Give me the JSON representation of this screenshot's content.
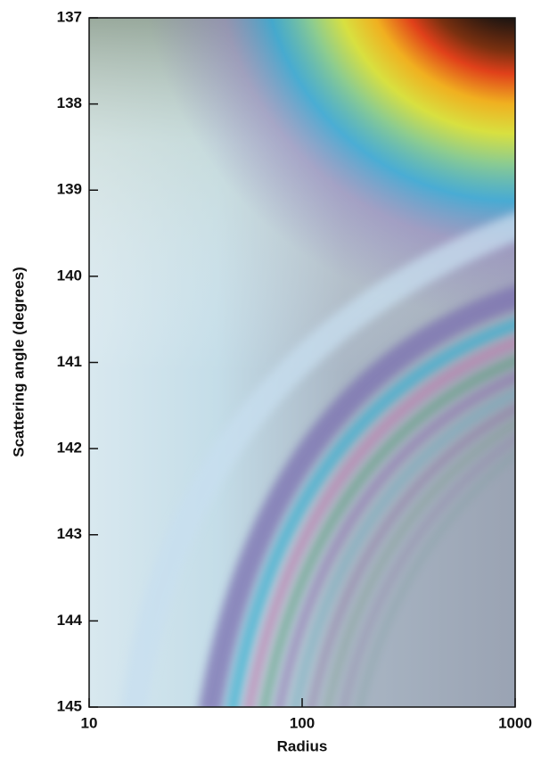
{
  "chart_data": {
    "type": "image",
    "x_label": "Radius",
    "y_label": "Scattering angle (degrees)",
    "xlim": [
      10,
      1000
    ],
    "xticks": [
      10,
      100,
      1000
    ],
    "xscale": "log",
    "ylim": [
      137,
      145
    ],
    "yticks": [
      137,
      138,
      139,
      140,
      141,
      142,
      143,
      144,
      145
    ],
    "y_reversed": true
  }
}
